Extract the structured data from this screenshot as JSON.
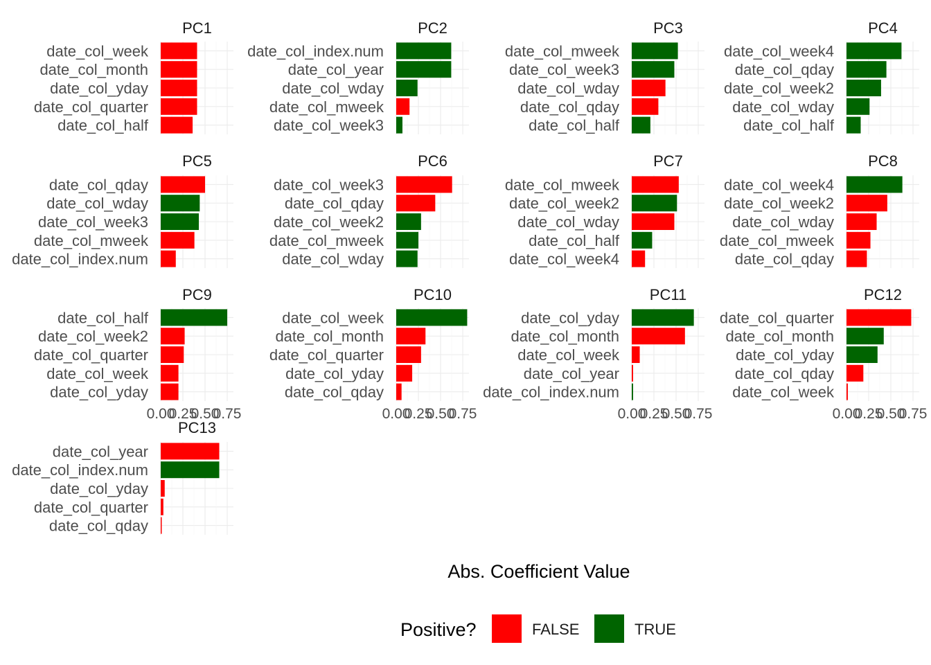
{
  "chart_data": {
    "type": "bar",
    "xlabel": "Abs. Coefficient Value",
    "xlim": [
      0,
      0.82
    ],
    "x_ticks": [
      "0.00",
      "0.25",
      "0.50",
      "0.75"
    ],
    "x_tick_values": [
      0,
      0.25,
      0.5,
      0.75
    ],
    "grid": true,
    "legend": {
      "title": "Positive?",
      "position": "bottom",
      "entries": [
        {
          "label": "FALSE",
          "color": "#ff0000"
        },
        {
          "label": "TRUE",
          "color": "#006400"
        }
      ]
    },
    "colors": {
      "FALSE": "#ff0000",
      "TRUE": "#006400"
    },
    "facets": [
      {
        "title": "PC1",
        "bars": [
          {
            "label": "date_col_week",
            "value": 0.41,
            "positive": false
          },
          {
            "label": "date_col_month",
            "value": 0.41,
            "positive": false
          },
          {
            "label": "date_col_yday",
            "value": 0.41,
            "positive": false
          },
          {
            "label": "date_col_quarter",
            "value": 0.41,
            "positive": false
          },
          {
            "label": "date_col_half",
            "value": 0.36,
            "positive": false
          }
        ]
      },
      {
        "title": "PC2",
        "bars": [
          {
            "label": "date_col_index.num",
            "value": 0.62,
            "positive": true
          },
          {
            "label": "date_col_year",
            "value": 0.62,
            "positive": true
          },
          {
            "label": "date_col_wday",
            "value": 0.24,
            "positive": true
          },
          {
            "label": "date_col_mweek",
            "value": 0.15,
            "positive": false
          },
          {
            "label": "date_col_week3",
            "value": 0.07,
            "positive": true
          }
        ]
      },
      {
        "title": "PC3",
        "bars": [
          {
            "label": "date_col_mweek",
            "value": 0.52,
            "positive": true
          },
          {
            "label": "date_col_week3",
            "value": 0.48,
            "positive": true
          },
          {
            "label": "date_col_wday",
            "value": 0.38,
            "positive": false
          },
          {
            "label": "date_col_qday",
            "value": 0.3,
            "positive": false
          },
          {
            "label": "date_col_half",
            "value": 0.21,
            "positive": true
          }
        ]
      },
      {
        "title": "PC4",
        "bars": [
          {
            "label": "date_col_week4",
            "value": 0.62,
            "positive": true
          },
          {
            "label": "date_col_qday",
            "value": 0.45,
            "positive": true
          },
          {
            "label": "date_col_week2",
            "value": 0.39,
            "positive": true
          },
          {
            "label": "date_col_wday",
            "value": 0.26,
            "positive": true
          },
          {
            "label": "date_col_half",
            "value": 0.16,
            "positive": true
          }
        ]
      },
      {
        "title": "PC5",
        "bars": [
          {
            "label": "date_col_qday",
            "value": 0.5,
            "positive": false
          },
          {
            "label": "date_col_wday",
            "value": 0.44,
            "positive": true
          },
          {
            "label": "date_col_week3",
            "value": 0.43,
            "positive": true
          },
          {
            "label": "date_col_mweek",
            "value": 0.38,
            "positive": false
          },
          {
            "label": "date_col_index.num",
            "value": 0.17,
            "positive": false
          }
        ]
      },
      {
        "title": "PC6",
        "bars": [
          {
            "label": "date_col_week3",
            "value": 0.63,
            "positive": false
          },
          {
            "label": "date_col_qday",
            "value": 0.44,
            "positive": false
          },
          {
            "label": "date_col_week2",
            "value": 0.28,
            "positive": true
          },
          {
            "label": "date_col_mweek",
            "value": 0.25,
            "positive": true
          },
          {
            "label": "date_col_wday",
            "value": 0.24,
            "positive": true
          }
        ]
      },
      {
        "title": "PC7",
        "bars": [
          {
            "label": "date_col_mweek",
            "value": 0.53,
            "positive": false
          },
          {
            "label": "date_col_week2",
            "value": 0.51,
            "positive": true
          },
          {
            "label": "date_col_wday",
            "value": 0.48,
            "positive": false
          },
          {
            "label": "date_col_half",
            "value": 0.23,
            "positive": true
          },
          {
            "label": "date_col_week4",
            "value": 0.15,
            "positive": false
          }
        ]
      },
      {
        "title": "PC8",
        "bars": [
          {
            "label": "date_col_week4",
            "value": 0.63,
            "positive": true
          },
          {
            "label": "date_col_week2",
            "value": 0.46,
            "positive": false
          },
          {
            "label": "date_col_wday",
            "value": 0.34,
            "positive": false
          },
          {
            "label": "date_col_mweek",
            "value": 0.27,
            "positive": false
          },
          {
            "label": "date_col_qday",
            "value": 0.23,
            "positive": false
          }
        ]
      },
      {
        "title": "PC9",
        "bars": [
          {
            "label": "date_col_half",
            "value": 0.75,
            "positive": true
          },
          {
            "label": "date_col_week2",
            "value": 0.27,
            "positive": false
          },
          {
            "label": "date_col_quarter",
            "value": 0.26,
            "positive": false
          },
          {
            "label": "date_col_week",
            "value": 0.2,
            "positive": false
          },
          {
            "label": "date_col_yday",
            "value": 0.2,
            "positive": false
          }
        ]
      },
      {
        "title": "PC10",
        "bars": [
          {
            "label": "date_col_week",
            "value": 0.8,
            "positive": true
          },
          {
            "label": "date_col_month",
            "value": 0.33,
            "positive": false
          },
          {
            "label": "date_col_quarter",
            "value": 0.28,
            "positive": false
          },
          {
            "label": "date_col_yday",
            "value": 0.18,
            "positive": false
          },
          {
            "label": "date_col_qday",
            "value": 0.06,
            "positive": false
          }
        ]
      },
      {
        "title": "PC11",
        "bars": [
          {
            "label": "date_col_yday",
            "value": 0.7,
            "positive": true
          },
          {
            "label": "date_col_month",
            "value": 0.6,
            "positive": false
          },
          {
            "label": "date_col_week",
            "value": 0.09,
            "positive": false
          },
          {
            "label": "date_col_year",
            "value": 0.015,
            "positive": false
          },
          {
            "label": "date_col_index.num",
            "value": 0.015,
            "positive": true
          }
        ]
      },
      {
        "title": "PC12",
        "bars": [
          {
            "label": "date_col_quarter",
            "value": 0.73,
            "positive": false
          },
          {
            "label": "date_col_month",
            "value": 0.42,
            "positive": true
          },
          {
            "label": "date_col_yday",
            "value": 0.35,
            "positive": true
          },
          {
            "label": "date_col_qday",
            "value": 0.19,
            "positive": false
          },
          {
            "label": "date_col_week",
            "value": 0.015,
            "positive": false
          }
        ]
      },
      {
        "title": "PC13",
        "bars": [
          {
            "label": "date_col_year",
            "value": 0.66,
            "positive": false
          },
          {
            "label": "date_col_index.num",
            "value": 0.66,
            "positive": true
          },
          {
            "label": "date_col_yday",
            "value": 0.045,
            "positive": false
          },
          {
            "label": "date_col_quarter",
            "value": 0.03,
            "positive": false
          },
          {
            "label": "date_col_qday",
            "value": 0.01,
            "positive": false
          }
        ]
      }
    ]
  }
}
